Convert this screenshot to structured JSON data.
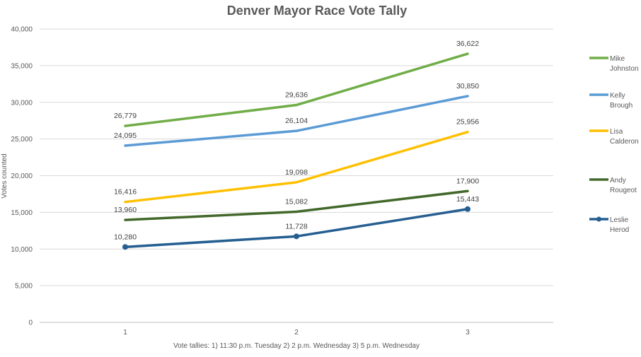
{
  "chart_data": {
    "type": "line",
    "title": "Denver Mayor Race Vote Tally",
    "xlabel": "Vote tallies: 1) 11:30 p.m. Tuesday 2) 2 p.m. Wednesday 3) 5 p.m. Wednesday",
    "ylabel": "Votes counted",
    "categories": [
      "1",
      "2",
      "3"
    ],
    "ylim": [
      0,
      40000
    ],
    "yticks": [
      0,
      5000,
      10000,
      15000,
      20000,
      25000,
      30000,
      35000,
      40000
    ],
    "ytick_labels": [
      "0",
      "5,000",
      "10,000",
      "15,000",
      "20,000",
      "25,000",
      "30,000",
      "35,000",
      "40,000"
    ],
    "grid": true,
    "legend_position": "right",
    "series": [
      {
        "name": "Mike Johnston",
        "name_lines": [
          "Mike",
          "Johnston"
        ],
        "color": "#70ad47",
        "values": [
          26779,
          29636,
          36622
        ],
        "labels": [
          "26,779",
          "29,636",
          "36,622"
        ],
        "markers": false
      },
      {
        "name": "Kelly Brough",
        "name_lines": [
          "Kelly",
          "Brough"
        ],
        "color": "#5b9bd5",
        "values": [
          24095,
          26104,
          30850
        ],
        "labels": [
          "24,095",
          "26,104",
          "30,850"
        ],
        "markers": false
      },
      {
        "name": "Lisa Calderon",
        "name_lines": [
          "Lisa",
          "Calderon"
        ],
        "color": "#ffc000",
        "values": [
          16416,
          19098,
          25956
        ],
        "labels": [
          "16,416",
          "19,098",
          "25,956"
        ],
        "markers": false
      },
      {
        "name": "Andy Rougeot",
        "name_lines": [
          "Andy",
          "Rougeot"
        ],
        "color": "#43682b",
        "values": [
          13960,
          15082,
          17900
        ],
        "labels": [
          "13,960",
          "15,082",
          "17,900"
        ],
        "markers": false
      },
      {
        "name": "Leslie Herod",
        "name_lines": [
          "Leslie",
          "Herod"
        ],
        "color": "#255e91",
        "values": [
          10280,
          11728,
          15443
        ],
        "labels": [
          "10,280",
          "11,728",
          "15,443"
        ],
        "markers": true
      }
    ]
  }
}
